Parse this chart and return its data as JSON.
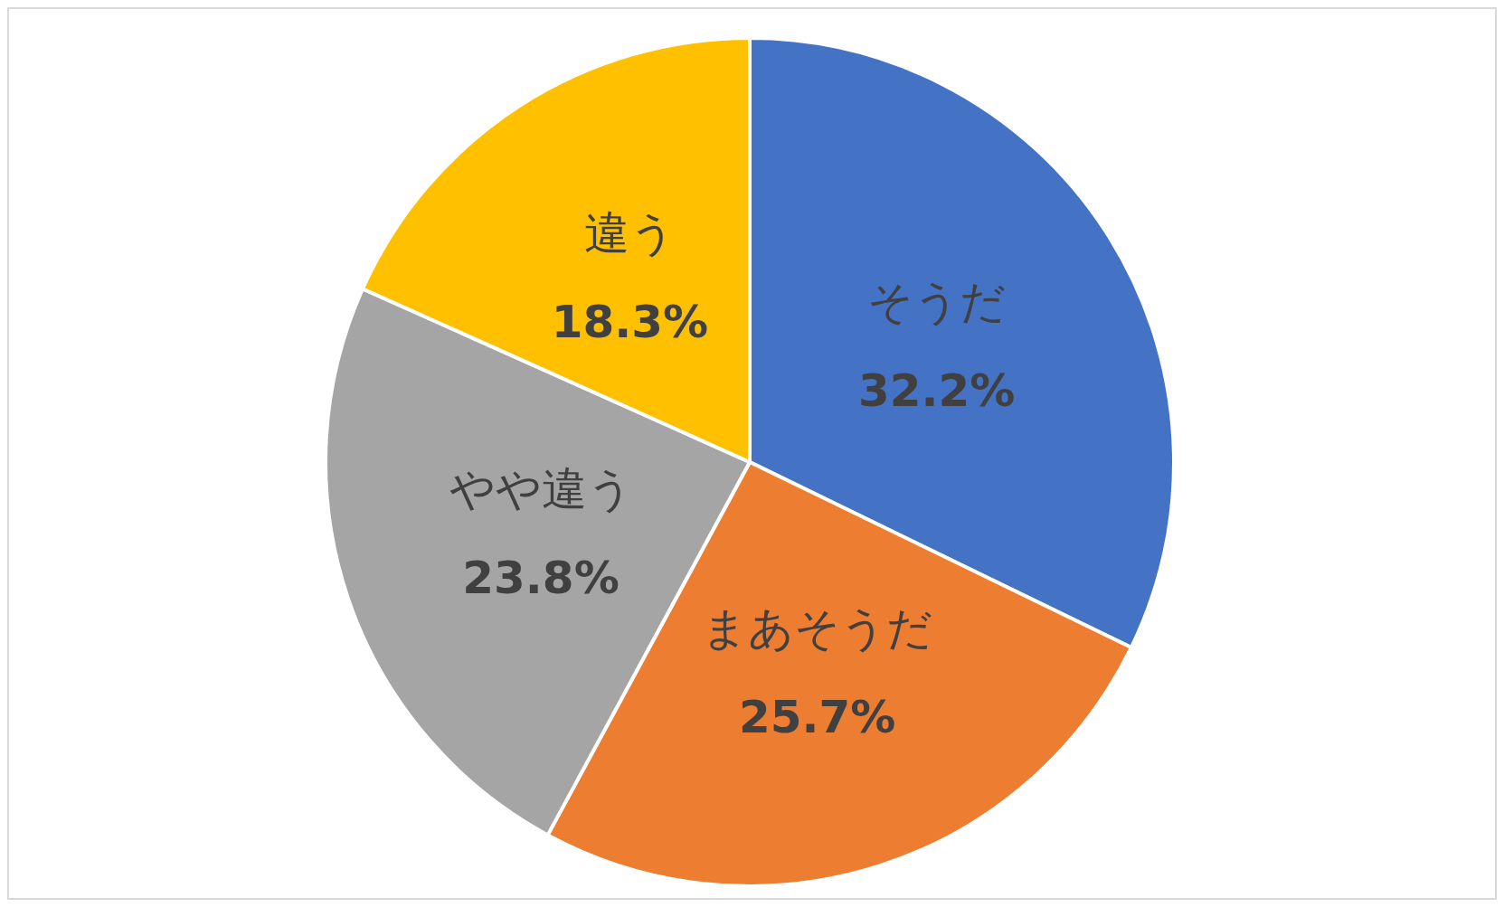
{
  "chart_data": {
    "type": "pie",
    "categories": [
      "そうだ",
      "まあそうだ",
      "やや違う",
      "違う"
    ],
    "values": [
      32.2,
      25.7,
      23.8,
      18.3
    ],
    "colors": [
      "#4472c4",
      "#ed7d31",
      "#a5a5a5",
      "#ffc000"
    ],
    "value_labels": [
      "32.2%",
      "25.7%",
      "23.8%",
      "18.3%"
    ]
  }
}
